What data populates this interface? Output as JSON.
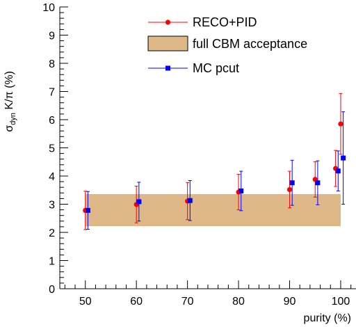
{
  "chart_data": {
    "type": "scatter",
    "xlabel": "purity (%)",
    "ylabel": {
      "main": "σ",
      "sub": "dyn",
      "rest": " K/π (%)"
    },
    "xlim": [
      45,
      103
    ],
    "ylim": [
      0,
      10
    ],
    "xticks": [
      50,
      60,
      70,
      80,
      90,
      100
    ],
    "yticks": [
      0,
      1,
      2,
      3,
      4,
      5,
      6,
      7,
      8,
      9,
      10
    ],
    "grid": false,
    "legend_position": "top-right",
    "band": {
      "name": "full CBM acceptance",
      "xmin": 50,
      "xmax": 100,
      "ymin": 2.22,
      "ymax": 3.36,
      "color": "#deb887"
    },
    "series": [
      {
        "name": "RECO+PID",
        "color": "#ff0000",
        "marker": "circle",
        "x": [
          50,
          60,
          70,
          80,
          90,
          95,
          99,
          100
        ],
        "y": [
          2.78,
          2.99,
          3.11,
          3.43,
          3.52,
          3.88,
          4.27,
          5.85
        ],
        "err": [
          0.68,
          0.65,
          0.66,
          0.63,
          0.65,
          0.63,
          0.64,
          1.08
        ]
      },
      {
        "name": "MC pcut",
        "color": "#0000ff",
        "marker": "square",
        "x": [
          50.5,
          60.5,
          70.5,
          80.5,
          90.5,
          95.5,
          99.5,
          100.5
        ],
        "y": [
          2.78,
          3.09,
          3.13,
          3.47,
          3.76,
          3.76,
          4.18,
          4.64
        ],
        "err": [
          0.67,
          0.69,
          0.71,
          0.7,
          0.8,
          0.78,
          0.71,
          1.64
        ]
      }
    ]
  }
}
